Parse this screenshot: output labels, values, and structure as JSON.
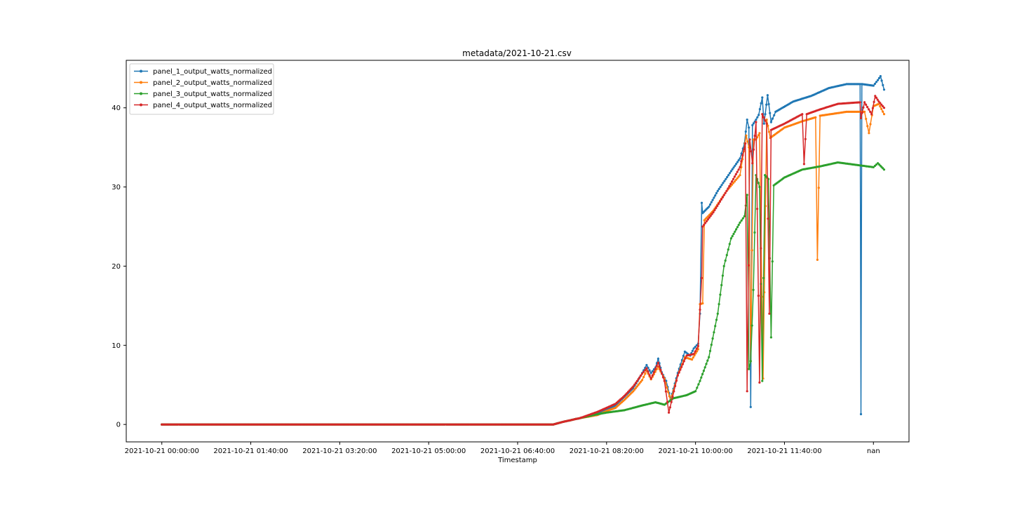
{
  "chart_data": {
    "type": "line",
    "title": "metadata/2021-10-21.csv",
    "xlabel": "Timestamp",
    "ylabel": "",
    "x_tick_labels": [
      "2021-10-21 00:00:00",
      "2021-10-21 01:40:00",
      "2021-10-21 03:20:00",
      "2021-10-21 05:00:00",
      "2021-10-21 06:40:00",
      "2021-10-21 08:20:00",
      "2021-10-21 10:00:00",
      "2021-10-21 11:40:00",
      "nan"
    ],
    "x_range_minutes": [
      -40,
      840
    ],
    "ylim": [
      -2.2,
      46
    ],
    "y_ticks": [
      0,
      10,
      20,
      30,
      40
    ],
    "grid": false,
    "legend_position": "top-left",
    "series": [
      {
        "name": "panel_1_output_watts_normalized",
        "color": "#1f77b4",
        "points": [
          [
            0,
            0
          ],
          [
            440,
            0
          ],
          [
            450,
            0.3
          ],
          [
            470,
            0.8
          ],
          [
            490,
            1.4
          ],
          [
            500,
            1.9
          ],
          [
            510,
            2.4
          ],
          [
            520,
            3.5
          ],
          [
            530,
            4.6
          ],
          [
            535,
            5.5
          ],
          [
            540,
            6.5
          ],
          [
            545,
            7.5
          ],
          [
            550,
            6.5
          ],
          [
            555,
            7.2
          ],
          [
            558,
            8.3
          ],
          [
            562,
            6.6
          ],
          [
            567,
            5.5
          ],
          [
            572,
            3.2
          ],
          [
            580,
            6.5
          ],
          [
            588,
            9.2
          ],
          [
            594,
            8.7
          ],
          [
            598,
            9.6
          ],
          [
            603,
            10.2
          ],
          [
            605,
            14
          ],
          [
            607,
            28
          ],
          [
            608,
            26.7
          ],
          [
            615,
            27.5
          ],
          [
            625,
            29.5
          ],
          [
            640,
            32
          ],
          [
            650,
            33.6
          ],
          [
            655,
            35.5
          ],
          [
            658,
            38.5
          ],
          [
            660,
            37.5
          ],
          [
            662,
            2.2
          ],
          [
            664,
            37.8
          ],
          [
            668,
            38.5
          ],
          [
            671,
            39.1
          ],
          [
            675,
            41.3
          ],
          [
            677,
            38
          ],
          [
            681,
            41.6
          ],
          [
            685,
            38.2
          ],
          [
            690,
            39.5
          ],
          [
            710,
            40.8
          ],
          [
            730,
            41.5
          ],
          [
            750,
            42.5
          ],
          [
            770,
            43
          ],
          [
            785,
            43
          ],
          [
            786,
            1.3
          ],
          [
            787,
            43
          ],
          [
            800,
            42.8
          ],
          [
            805,
            43.5
          ],
          [
            808,
            44
          ],
          [
            812,
            42.3
          ]
        ]
      },
      {
        "name": "panel_2_output_watts_normalized",
        "color": "#ff7f0e",
        "points": [
          [
            0,
            0
          ],
          [
            440,
            0
          ],
          [
            450,
            0.3
          ],
          [
            470,
            0.8
          ],
          [
            490,
            1.2
          ],
          [
            500,
            1.7
          ],
          [
            510,
            2.1
          ],
          [
            520,
            3.1
          ],
          [
            530,
            4.2
          ],
          [
            540,
            5.6
          ],
          [
            545,
            6.8
          ],
          [
            550,
            5.7
          ],
          [
            558,
            7.3
          ],
          [
            565,
            5.8
          ],
          [
            572,
            3
          ],
          [
            580,
            6.2
          ],
          [
            588,
            8.5
          ],
          [
            596,
            8.2
          ],
          [
            603,
            9.5
          ],
          [
            605,
            15.2
          ],
          [
            608,
            15.3
          ],
          [
            610,
            25.8
          ],
          [
            620,
            27
          ],
          [
            635,
            29.5
          ],
          [
            650,
            31.5
          ],
          [
            657,
            36.5
          ],
          [
            660,
            35
          ],
          [
            662,
            8
          ],
          [
            665,
            36
          ],
          [
            668,
            36
          ],
          [
            672,
            36.8
          ],
          [
            676,
            5.8
          ],
          [
            680,
            38.5
          ],
          [
            684,
            36.2
          ],
          [
            700,
            37.5
          ],
          [
            720,
            38.3
          ],
          [
            735,
            38.8
          ],
          [
            737,
            20.8
          ],
          [
            740,
            39
          ],
          [
            770,
            39.5
          ],
          [
            790,
            39.5
          ],
          [
            795,
            36.8
          ],
          [
            800,
            40.2
          ],
          [
            806,
            40.5
          ],
          [
            812,
            39.2
          ]
        ]
      },
      {
        "name": "panel_3_output_watts_normalized",
        "color": "#2ca02c",
        "points": [
          [
            0,
            0
          ],
          [
            440,
            0
          ],
          [
            450,
            0.3
          ],
          [
            470,
            0.8
          ],
          [
            490,
            1.3
          ],
          [
            500,
            1.5
          ],
          [
            520,
            1.8
          ],
          [
            540,
            2.4
          ],
          [
            555,
            2.8
          ],
          [
            565,
            2.5
          ],
          [
            575,
            3.3
          ],
          [
            590,
            3.7
          ],
          [
            600,
            4.2
          ],
          [
            605,
            5.5
          ],
          [
            615,
            8.5
          ],
          [
            625,
            14
          ],
          [
            632,
            20
          ],
          [
            640,
            23.5
          ],
          [
            650,
            25.5
          ],
          [
            655,
            26.3
          ],
          [
            658,
            29
          ],
          [
            660,
            7
          ],
          [
            662,
            8
          ],
          [
            665,
            17
          ],
          [
            668,
            31.5
          ],
          [
            672,
            30
          ],
          [
            675,
            5.5
          ],
          [
            678,
            31.5
          ],
          [
            682,
            31
          ],
          [
            685,
            11
          ],
          [
            688,
            30.2
          ],
          [
            700,
            31.2
          ],
          [
            720,
            32.2
          ],
          [
            740,
            32.6
          ],
          [
            760,
            33.1
          ],
          [
            780,
            32.8
          ],
          [
            800,
            32.5
          ],
          [
            805,
            33
          ],
          [
            812,
            32.2
          ]
        ]
      },
      {
        "name": "panel_4_output_watts_normalized",
        "color": "#d62728",
        "points": [
          [
            0,
            0
          ],
          [
            440,
            0
          ],
          [
            450,
            0.3
          ],
          [
            470,
            0.8
          ],
          [
            490,
            1.6
          ],
          [
            500,
            2.1
          ],
          [
            510,
            2.6
          ],
          [
            520,
            3.6
          ],
          [
            530,
            4.8
          ],
          [
            540,
            6.4
          ],
          [
            545,
            7.1
          ],
          [
            550,
            5.8
          ],
          [
            558,
            7.8
          ],
          [
            565,
            5.5
          ],
          [
            570,
            1.5
          ],
          [
            580,
            6.2
          ],
          [
            590,
            8.7
          ],
          [
            598,
            8.9
          ],
          [
            603,
            9.9
          ],
          [
            605,
            14.5
          ],
          [
            607,
            18.5
          ],
          [
            608,
            25
          ],
          [
            620,
            26.8
          ],
          [
            635,
            29.5
          ],
          [
            650,
            32.5
          ],
          [
            656,
            35.5
          ],
          [
            658,
            4.2
          ],
          [
            661,
            36
          ],
          [
            664,
            33
          ],
          [
            668,
            38.2
          ],
          [
            672,
            5.3
          ],
          [
            675,
            39.2
          ],
          [
            680,
            38
          ],
          [
            683,
            14
          ],
          [
            685,
            37.2
          ],
          [
            700,
            38
          ],
          [
            720,
            39.2
          ],
          [
            722,
            32.9
          ],
          [
            725,
            39.2
          ],
          [
            740,
            39.8
          ],
          [
            760,
            40.5
          ],
          [
            785,
            40.7
          ],
          [
            786,
            38.7
          ],
          [
            790,
            40.7
          ],
          [
            798,
            39.2
          ],
          [
            802,
            41.5
          ],
          [
            806,
            40.8
          ],
          [
            812,
            40
          ]
        ]
      }
    ]
  }
}
